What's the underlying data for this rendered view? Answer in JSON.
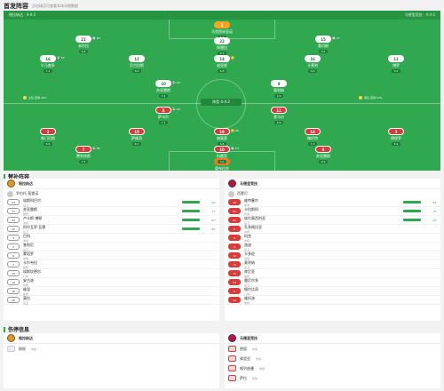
{
  "header": {
    "title": "首发阵容",
    "subtitle": "点击球员可查看本场详细数据",
    "home_team": "格拉纳达 · 4-4-2",
    "away_team": "马德里竞技 · 4-4-2"
  },
  "pitch": {
    "score_chip": "阵型 4-4-2",
    "home_stat": "主队 控球 46%",
    "away_stat": "客队 控球 54%",
    "home_players": [
      {
        "no": "1",
        "name": "马克西米亚诺",
        "rating": "6.7",
        "event": ""
      },
      {
        "no": "16",
        "name": "V.马查多",
        "rating": "7.1",
        "event": "⚽ 57'"
      },
      {
        "no": "12",
        "name": "尼古拉斯",
        "rating": "6.9",
        "event": ""
      },
      {
        "no": "14",
        "name": "迪亚斯",
        "rating": "6.8",
        "event": "🟨"
      },
      {
        "no": "16",
        "name": "卡莱利",
        "rating": "6.6",
        "event": ""
      },
      {
        "no": "11",
        "name": "博罗",
        "rating": "6.5",
        "event": ""
      },
      {
        "no": "10",
        "name": "苏亚雷斯",
        "rating": "7.4",
        "event": "⚽ 23'"
      },
      {
        "no": "9",
        "name": "莫利纳",
        "rating": "7.0",
        "event": ""
      },
      {
        "no": "21",
        "name": "米尔拉",
        "rating": "6.8",
        "event": "🔄 60'"
      },
      {
        "no": "15",
        "name": "桑切斯",
        "rating": "6.4",
        "event": "🔄 71'"
      },
      {
        "no": "22",
        "name": "佩雷拉",
        "rating": "6.3",
        "event": ""
      }
    ],
    "away_players": [
      {
        "no": "13",
        "name": "奥布拉克",
        "rating": "7.2",
        "event": ""
      },
      {
        "no": "2",
        "name": "希门尼斯",
        "rating": "6.9",
        "event": ""
      },
      {
        "no": "15",
        "name": "萨维奇",
        "rating": "6.7",
        "event": ""
      },
      {
        "no": "18",
        "name": "赫莫索",
        "rating": "6.8",
        "event": "🟨 46'"
      },
      {
        "no": "14",
        "name": "略伦特",
        "rating": "7.3",
        "event": ""
      },
      {
        "no": "5",
        "name": "德保罗",
        "rating": "6.9",
        "event": ""
      },
      {
        "no": "8",
        "name": "萨乌尔",
        "rating": "7.1",
        "event": "⚽ 40'"
      },
      {
        "no": "11",
        "name": "莱马尔",
        "rating": "6.8",
        "event": ""
      },
      {
        "no": "7",
        "name": "费利克斯",
        "rating": "7.5",
        "event": "⚽ 84'"
      },
      {
        "no": "9",
        "name": "苏亚雷斯",
        "rating": "6.9",
        "event": ""
      },
      {
        "no": "10",
        "name": "科雷亚",
        "rating": "7.0",
        "event": "🔄 70'"
      }
    ]
  },
  "subs": {
    "title": "替补阵容",
    "home": {
      "team": "格拉纳达",
      "coach": "罗伯托·莫雷诺",
      "rows": [
        {
          "no": "23",
          "name": "埃斯科巴尔",
          "pos": "后卫",
          "min": "60'"
        },
        {
          "no": "17",
          "name": "苏亚雷斯",
          "pos": "前锋",
          "min": "71'"
        },
        {
          "no": "24",
          "name": "卢卡斯·博耶",
          "pos": "中场",
          "min": "62'"
        },
        {
          "no": "20",
          "name": "阿尔瓦罗·瓦德",
          "pos": "后卫",
          "min": "82'"
        },
        {
          "no": "4",
          "name": "巴科",
          "pos": "中场",
          "min": ""
        },
        {
          "no": "3",
          "name": "奎利尼",
          "pos": "后卫",
          "min": ""
        },
        {
          "no": "6",
          "name": "蒙塔罗",
          "pos": "中场",
          "min": ""
        },
        {
          "no": "7",
          "name": "卡尔韦拉",
          "pos": "前锋",
          "min": ""
        },
        {
          "no": "13",
          "name": "埃斯坎德尔",
          "pos": "门将",
          "min": ""
        },
        {
          "no": "19",
          "name": "安古洛",
          "pos": "中场",
          "min": ""
        },
        {
          "no": "18",
          "name": "维涅",
          "pos": "前锋",
          "min": ""
        },
        {
          "no": "26",
          "name": "莫拉",
          "pos": "后卫",
          "min": ""
        }
      ]
    },
    "away": {
      "team": "马德里竞技",
      "coach": "西蒙尼",
      "rows": [
        {
          "no": "20",
          "name": "维特塞尔",
          "pos": "中场",
          "min": "64'"
        },
        {
          "no": "21",
          "name": "卡拉斯科",
          "pos": "中场",
          "min": "70'"
        },
        {
          "no": "22",
          "name": "埃尔莫西利亚",
          "pos": "后卫",
          "min": "64'"
        },
        {
          "no": "4",
          "name": "孔多格比亚",
          "pos": "中场",
          "min": ""
        },
        {
          "no": "6",
          "name": "科克",
          "pos": "中场",
          "min": ""
        },
        {
          "no": "3",
          "name": "洛迪",
          "pos": "后卫",
          "min": ""
        },
        {
          "no": "12",
          "name": "卡多佐",
          "pos": "中场",
          "min": ""
        },
        {
          "no": "16",
          "name": "莫利纳",
          "pos": "后卫",
          "min": ""
        },
        {
          "no": "19",
          "name": "库尼亚",
          "pos": "前锋",
          "min": ""
        },
        {
          "no": "23",
          "name": "雷尼尔多",
          "pos": "后卫",
          "min": ""
        },
        {
          "no": "1",
          "name": "格尔比奇",
          "pos": "门将",
          "min": ""
        },
        {
          "no": "24",
          "name": "维托洛",
          "pos": "前锋",
          "min": ""
        }
      ]
    }
  },
  "injuries": {
    "title": "伤停信息",
    "home": {
      "team": "格拉纳达",
      "rows": [
        {
          "name": "佩佩",
          "status": "伤疑"
        }
      ]
    },
    "away": {
      "team": "马德里竞技",
      "rows": [
        {
          "name": "德容",
          "status": "伤停"
        },
        {
          "name": "弗里亚",
          "status": "伤停"
        },
        {
          "name": "格列兹曼",
          "status": "伤疑"
        },
        {
          "name": "萨拉",
          "status": "伤停"
        }
      ]
    }
  },
  "colors": {
    "pitch": "#2fa84f",
    "away_shirt": "#d93a3a",
    "gk_home": "#f7a51e",
    "gk_away": "#f5781e"
  }
}
